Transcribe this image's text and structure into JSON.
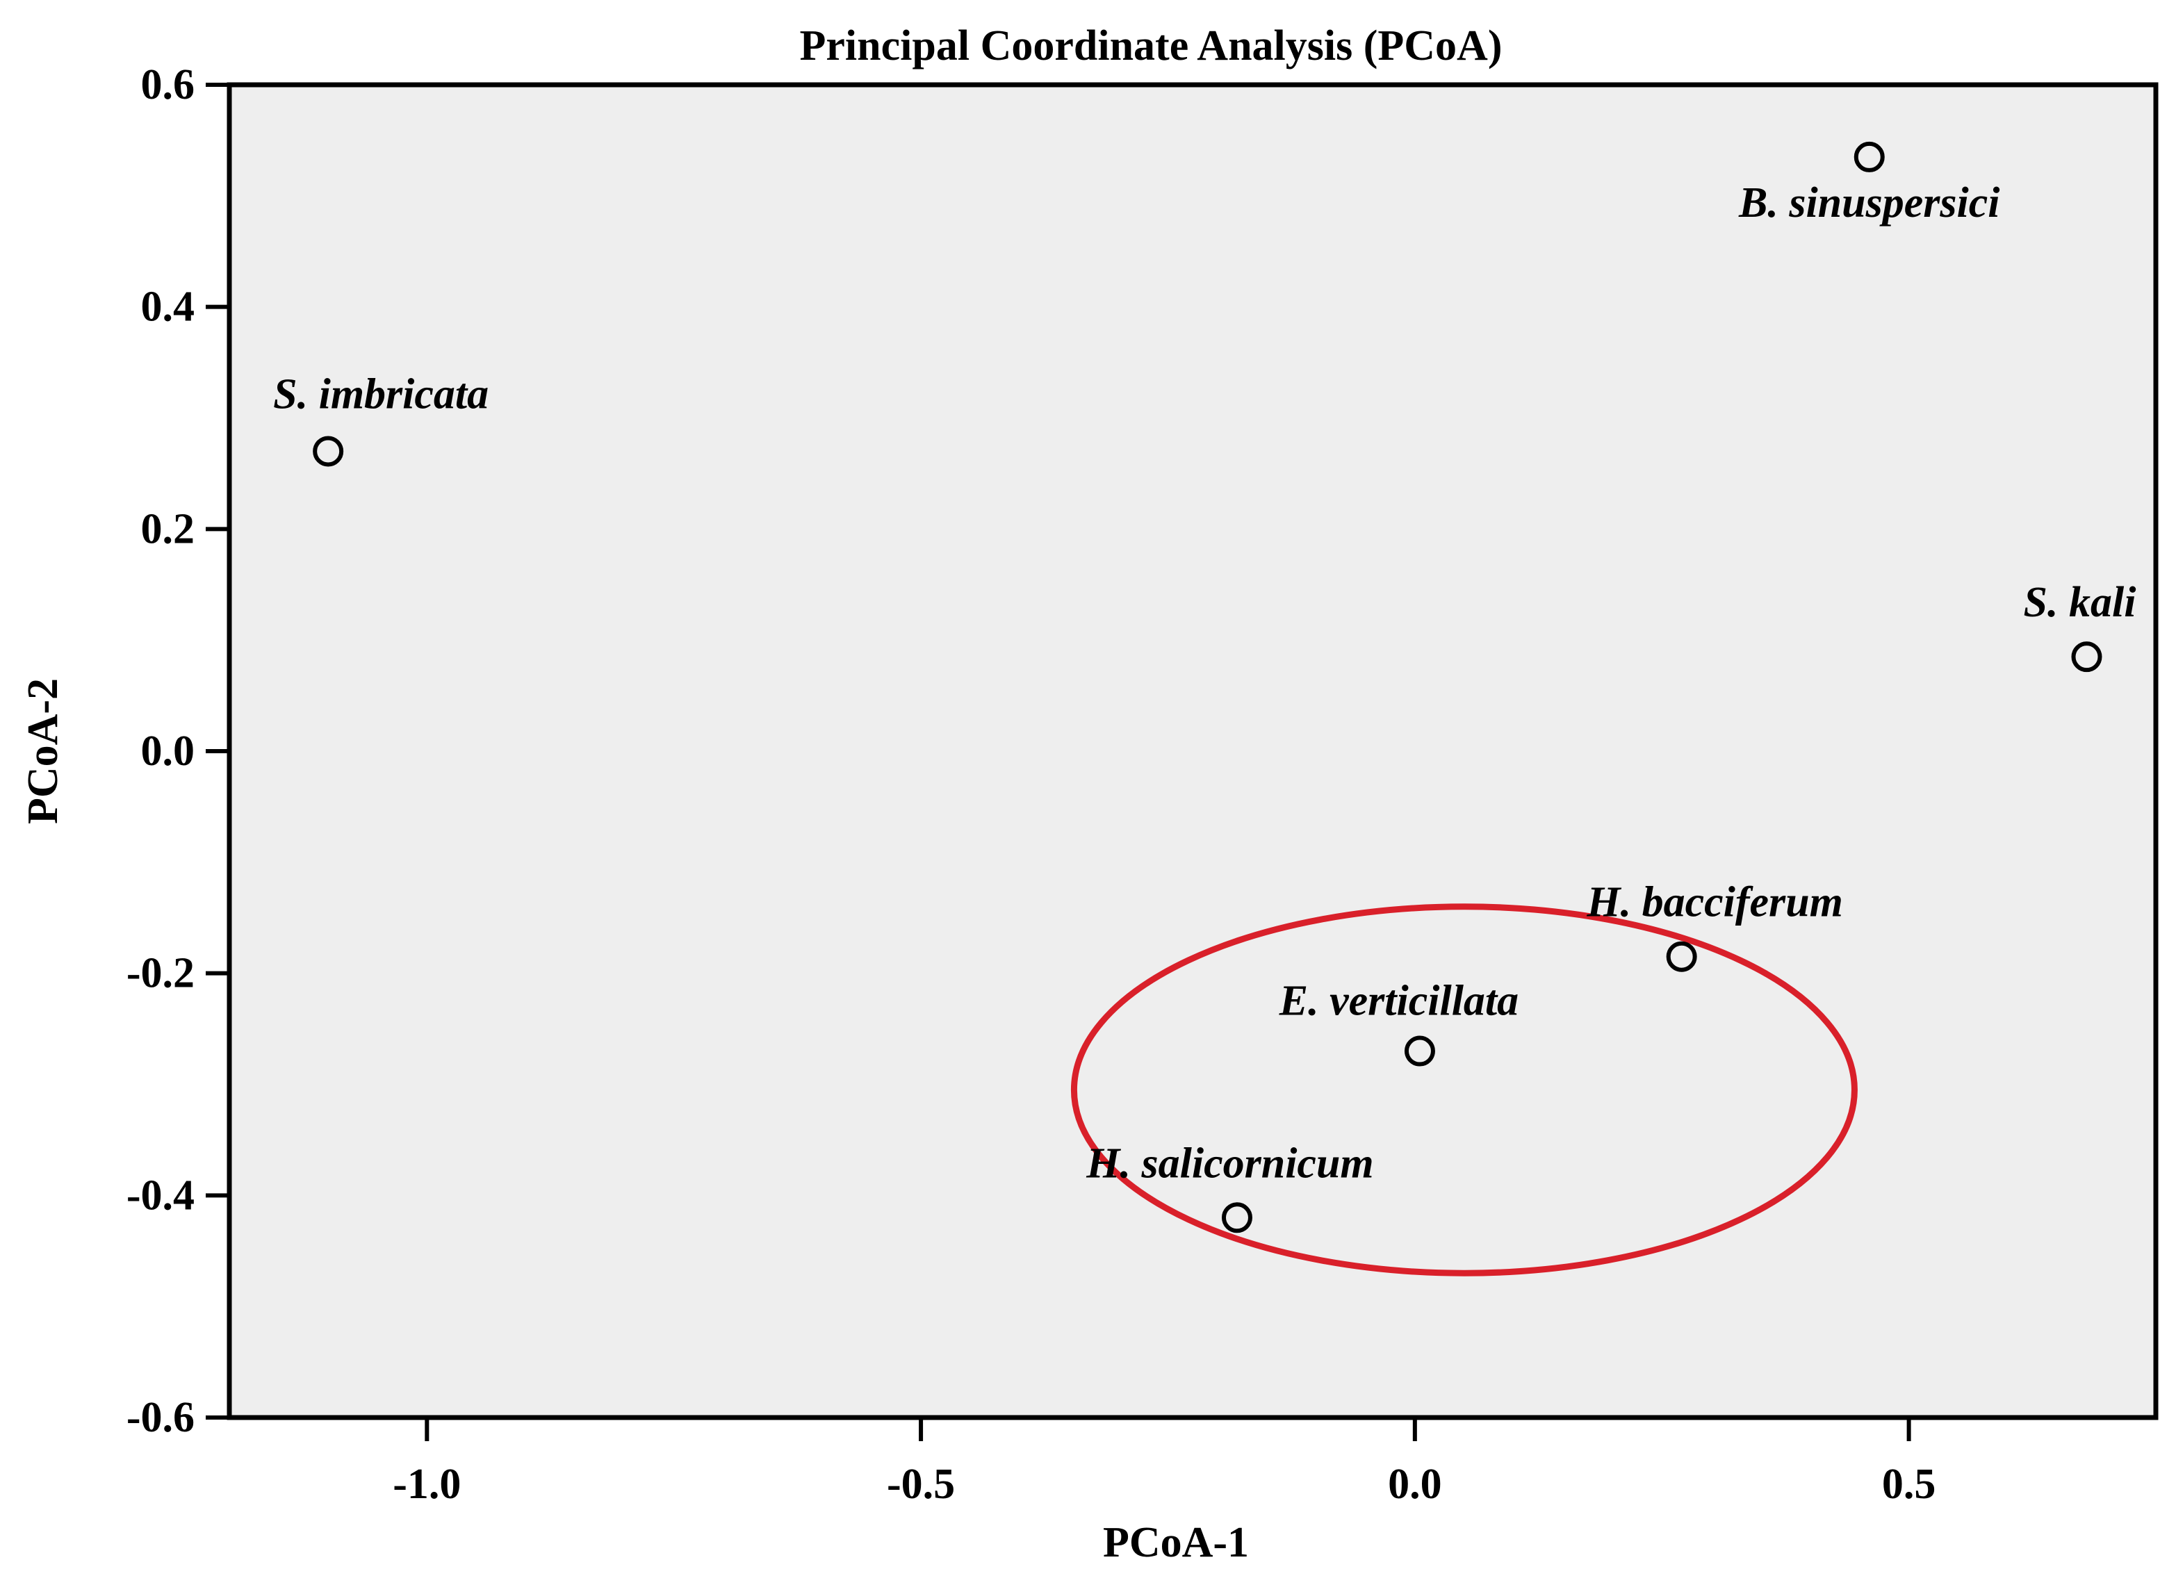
{
  "chart_data": {
    "type": "scatter",
    "title": "Principal Coordinate Analysis (PCoA)",
    "xlabel": "PCoA-1",
    "ylabel": "PCoA-2",
    "xlim": [
      -1.2,
      0.75
    ],
    "ylim": [
      -0.6,
      0.6
    ],
    "x_ticks": [
      {
        "value": -1.0,
        "label": "-1.0"
      },
      {
        "value": -0.5,
        "label": "-0.5"
      },
      {
        "value": 0.0,
        "label": "0.0"
      },
      {
        "value": 0.5,
        "label": "0.5"
      }
    ],
    "y_ticks": [
      {
        "value": 0.6,
        "label": "0.6"
      },
      {
        "value": 0.4,
        "label": "0.4"
      },
      {
        "value": 0.2,
        "label": "0.2"
      },
      {
        "value": 0.0,
        "label": "0.0"
      },
      {
        "value": -0.2,
        "label": "-0.2"
      },
      {
        "value": -0.4,
        "label": "-0.4"
      },
      {
        "value": -0.6,
        "label": "-0.6"
      }
    ],
    "grid": false,
    "background_color": "#eeeeee",
    "marker": "open-circle",
    "points": [
      {
        "label": "B. sinuspersici",
        "x": 0.46,
        "y": 0.535
      },
      {
        "label": "S. imbricata",
        "x": -1.1,
        "y": 0.27
      },
      {
        "label": "S. kali",
        "x": 0.68,
        "y": 0.085
      },
      {
        "label": "H. bacciferum",
        "x": 0.27,
        "y": -0.185
      },
      {
        "label": "E. verticillata",
        "x": 0.005,
        "y": -0.27
      },
      {
        "label": "H. salicornicum",
        "x": -0.18,
        "y": -0.42
      }
    ],
    "highlight_ellipse": {
      "color": "#d9202a",
      "cx": 0.05,
      "cy": -0.305,
      "rx": 0.395,
      "ry": 0.165,
      "encloses": [
        "H. bacciferum",
        "E. verticillata",
        "H. salicornicum"
      ]
    }
  }
}
